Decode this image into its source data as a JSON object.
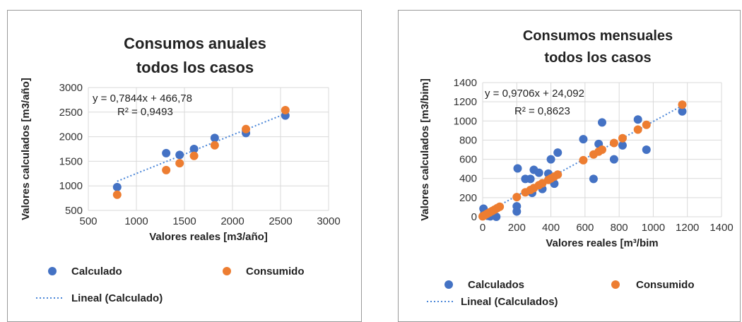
{
  "chart_data": [
    {
      "type": "scatter",
      "title_lines": [
        "Consumos anuales",
        "todos los casos"
      ],
      "xlabel": "Valores reales [m3/año]",
      "ylabel": "Valores calculados [m3/año]",
      "xlim": [
        500,
        3000
      ],
      "ylim": [
        500,
        3000
      ],
      "xticks": [
        500,
        1000,
        1500,
        2000,
        2500,
        3000
      ],
      "yticks": [
        500,
        1000,
        1500,
        2000,
        2500,
        3000
      ],
      "grid": true,
      "series": [
        {
          "name": "Calculado",
          "color": "#4472c4",
          "points": [
            [
              800,
              975
            ],
            [
              1310,
              1665
            ],
            [
              1450,
              1630
            ],
            [
              1600,
              1750
            ],
            [
              1815,
              1975
            ],
            [
              2140,
              2075
            ],
            [
              2550,
              2430
            ]
          ]
        },
        {
          "name": "Consumido",
          "color": "#ed7d31",
          "points": [
            [
              800,
              820
            ],
            [
              1310,
              1320
            ],
            [
              1450,
              1460
            ],
            [
              1600,
              1610
            ],
            [
              1815,
              1825
            ],
            [
              2140,
              2155
            ],
            [
              2550,
              2540
            ]
          ]
        }
      ],
      "trendline": {
        "name": "Lineal (Calculado)",
        "color": "#4a86d8",
        "slope": 0.7844,
        "intercept": 466.78,
        "x_range": [
          800,
          2550
        ]
      },
      "equation": "y = 0,7844x + 466,78",
      "r2": "R² = 0,9493"
    },
    {
      "type": "scatter",
      "title_lines": [
        "Consumos mensuales",
        "todos los casos"
      ],
      "xlabel": "Valores reales [m³/bim",
      "ylabel": "Valores calculados [m3/bim]",
      "xlim": [
        0,
        1400
      ],
      "ylim": [
        0,
        1400
      ],
      "xticks": [
        0,
        200,
        400,
        600,
        800,
        1000,
        1200,
        1400
      ],
      "yticks": [
        0,
        200,
        400,
        600,
        800,
        1000,
        1200,
        1400
      ],
      "grid": true,
      "series": [
        {
          "name": "Calculados",
          "color": "#4472c4",
          "points": [
            [
              5,
              85
            ],
            [
              10,
              40
            ],
            [
              30,
              10
            ],
            [
              45,
              5
            ],
            [
              60,
              20
            ],
            [
              80,
              0
            ],
            [
              200,
              110
            ],
            [
              200,
              55
            ],
            [
              205,
              505
            ],
            [
              250,
              395
            ],
            [
              280,
              395
            ],
            [
              290,
              250
            ],
            [
              300,
              490
            ],
            [
              330,
              460
            ],
            [
              350,
              290
            ],
            [
              385,
              450
            ],
            [
              400,
              600
            ],
            [
              420,
              345
            ],
            [
              440,
              670
            ],
            [
              590,
              810
            ],
            [
              650,
              395
            ],
            [
              680,
              760
            ],
            [
              700,
              985
            ],
            [
              770,
              600
            ],
            [
              820,
              745
            ],
            [
              910,
              1015
            ],
            [
              960,
              700
            ],
            [
              1170,
              1100
            ]
          ]
        },
        {
          "name": "Consumido",
          "color": "#ed7d31",
          "points": [
            [
              0,
              5
            ],
            [
              10,
              15
            ],
            [
              25,
              30
            ],
            [
              40,
              45
            ],
            [
              55,
              60
            ],
            [
              70,
              75
            ],
            [
              85,
              90
            ],
            [
              100,
              105
            ],
            [
              200,
              205
            ],
            [
              250,
              255
            ],
            [
              280,
              280
            ],
            [
              300,
              300
            ],
            [
              330,
              330
            ],
            [
              350,
              350
            ],
            [
              385,
              385
            ],
            [
              400,
              400
            ],
            [
              420,
              420
            ],
            [
              440,
              440
            ],
            [
              590,
              590
            ],
            [
              650,
              650
            ],
            [
              680,
              680
            ],
            [
              700,
              700
            ],
            [
              770,
              770
            ],
            [
              820,
              820
            ],
            [
              910,
              910
            ],
            [
              960,
              960
            ],
            [
              1170,
              1170
            ]
          ]
        }
      ],
      "trendline": {
        "name": "Lineal (Calculados)",
        "color": "#4a86d8",
        "slope": 0.9706,
        "intercept": 24.092,
        "x_range": [
          0,
          1170
        ]
      },
      "equation": "y = 0,9706x + 24,092",
      "r2": "R² = 0,8623"
    }
  ]
}
